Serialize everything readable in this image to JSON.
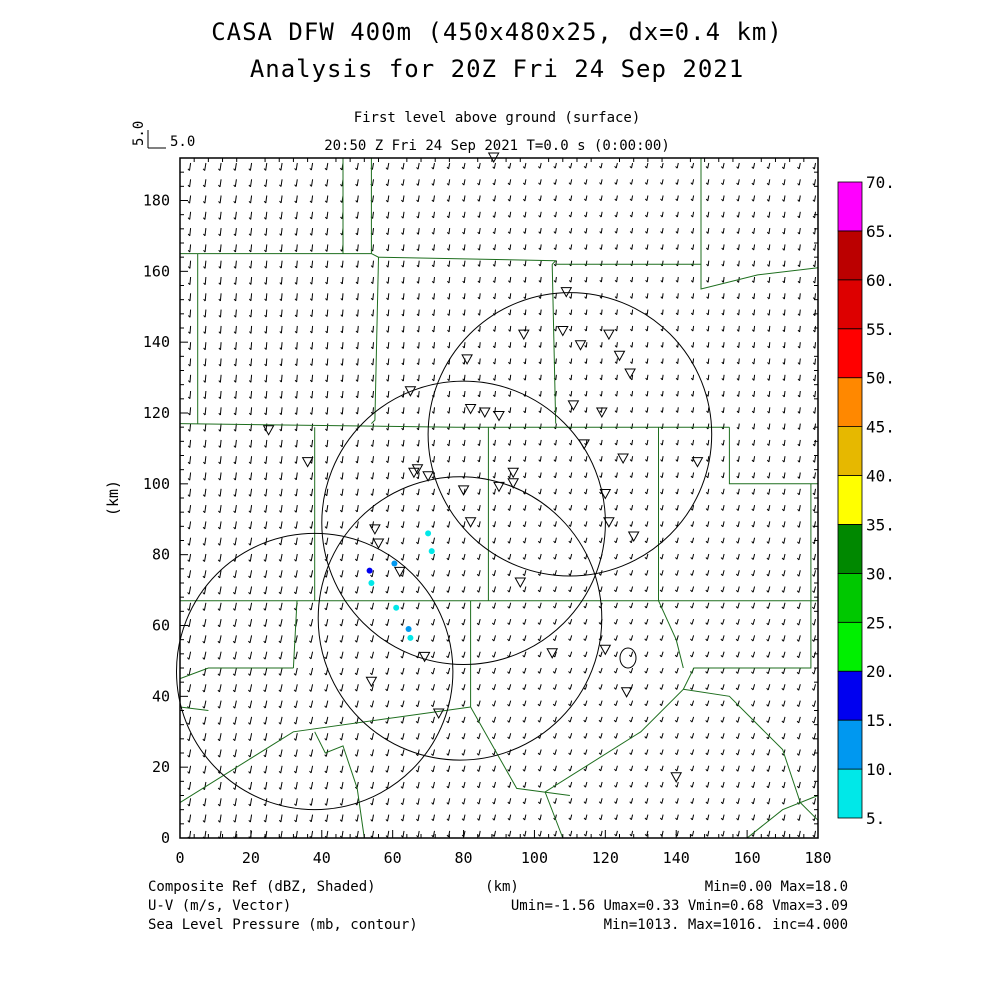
{
  "header": {
    "title_line1": "CASA DFW 400m (450x480x25, dx=0.4 km)",
    "title_line2": "Analysis for 20Z Fri 24 Sep 2021",
    "level": "First level above ground (surface)",
    "time": "20:50 Z Fri 24 Sep 2021     T=0.0 s (0:00:00)",
    "vector_scale_x": "5.0",
    "vector_scale_y": "5.0"
  },
  "footer": {
    "field1": "Composite Ref (dBZ, Shaded)",
    "field2": "U-V (m/s, Vector)",
    "field3": "Sea Level Pressure (mb, contour)",
    "xunit": "(km)",
    "stats1": "Min=0.00 Max=18.0",
    "stats2": "Umin=-1.56 Umax=0.33 Vmin=0.68 Vmax=3.09",
    "stats3": "Min=1013. Max=1016. inc=4.000"
  },
  "colors": {
    "county_lines": "#1e6e1e",
    "axes": "#000000",
    "scale": [
      "#00e8e8",
      "#0098f0",
      "#0000f0",
      "#00f000",
      "#00c800",
      "#008800",
      "#ffff00",
      "#e6b800",
      "#ff8800",
      "#ff0000",
      "#dd0000",
      "#bb0000",
      "#ff00ff"
    ]
  },
  "chart_data": {
    "type": "map",
    "xlabel": "(km)",
    "ylabel": "(km)",
    "xlim": [
      0,
      180
    ],
    "ylim": [
      0,
      192
    ],
    "xticks": [
      "0",
      "20",
      "40",
      "60",
      "80",
      "100",
      "120",
      "140",
      "160",
      "180"
    ],
    "yticks": [
      "0",
      "20",
      "40",
      "60",
      "80",
      "100",
      "120",
      "140",
      "160",
      "180"
    ],
    "colorbar_labels": [
      "5.",
      "10.",
      "15.",
      "20.",
      "25.",
      "30.",
      "35.",
      "40.",
      "45.",
      "50.",
      "55.",
      "60.",
      "65.",
      "70."
    ],
    "radar_circles_km": [
      {
        "cx": 38,
        "cy": 47,
        "r": 39
      },
      {
        "cx": 80,
        "cy": 89,
        "r": 40
      },
      {
        "cx": 110,
        "cy": 114,
        "r": 40
      },
      {
        "cx": 79,
        "cy": 62,
        "r": 40
      }
    ],
    "reflectivity_points": [
      {
        "x": 53.5,
        "y": 75.5,
        "dbz": 15
      },
      {
        "x": 60.5,
        "y": 77.5,
        "dbz": 10
      },
      {
        "x": 54,
        "y": 72,
        "dbz": 5
      },
      {
        "x": 70,
        "y": 86,
        "dbz": 5
      },
      {
        "x": 71,
        "y": 81,
        "dbz": 5
      },
      {
        "x": 64.5,
        "y": 59,
        "dbz": 10
      },
      {
        "x": 65,
        "y": 56.5,
        "dbz": 5
      },
      {
        "x": 61,
        "y": 65,
        "dbz": 5
      }
    ],
    "stations": [
      [
        88.5,
        192
      ],
      [
        109,
        154
      ],
      [
        97,
        142
      ],
      [
        108,
        143
      ],
      [
        113,
        139
      ],
      [
        121,
        142
      ],
      [
        124,
        136
      ],
      [
        127,
        131
      ],
      [
        81,
        135
      ],
      [
        65,
        126
      ],
      [
        82,
        121
      ],
      [
        86,
        120
      ],
      [
        90,
        119
      ],
      [
        111,
        122
      ],
      [
        119,
        120
      ],
      [
        114,
        111
      ],
      [
        25,
        115
      ],
      [
        36,
        106
      ],
      [
        67,
        104
      ],
      [
        66,
        103
      ],
      [
        70,
        102
      ],
      [
        125,
        107
      ],
      [
        146,
        106
      ],
      [
        80,
        98
      ],
      [
        94,
        103
      ],
      [
        90,
        99
      ],
      [
        94,
        100
      ],
      [
        120,
        97
      ],
      [
        121,
        89
      ],
      [
        82,
        89
      ],
      [
        128,
        85
      ],
      [
        55,
        87
      ],
      [
        56,
        83
      ],
      [
        62,
        75
      ],
      [
        96,
        72
      ],
      [
        120,
        53
      ],
      [
        105,
        52
      ],
      [
        69,
        51
      ],
      [
        54,
        44
      ],
      [
        73,
        35
      ],
      [
        126,
        41
      ],
      [
        140,
        17
      ]
    ]
  }
}
